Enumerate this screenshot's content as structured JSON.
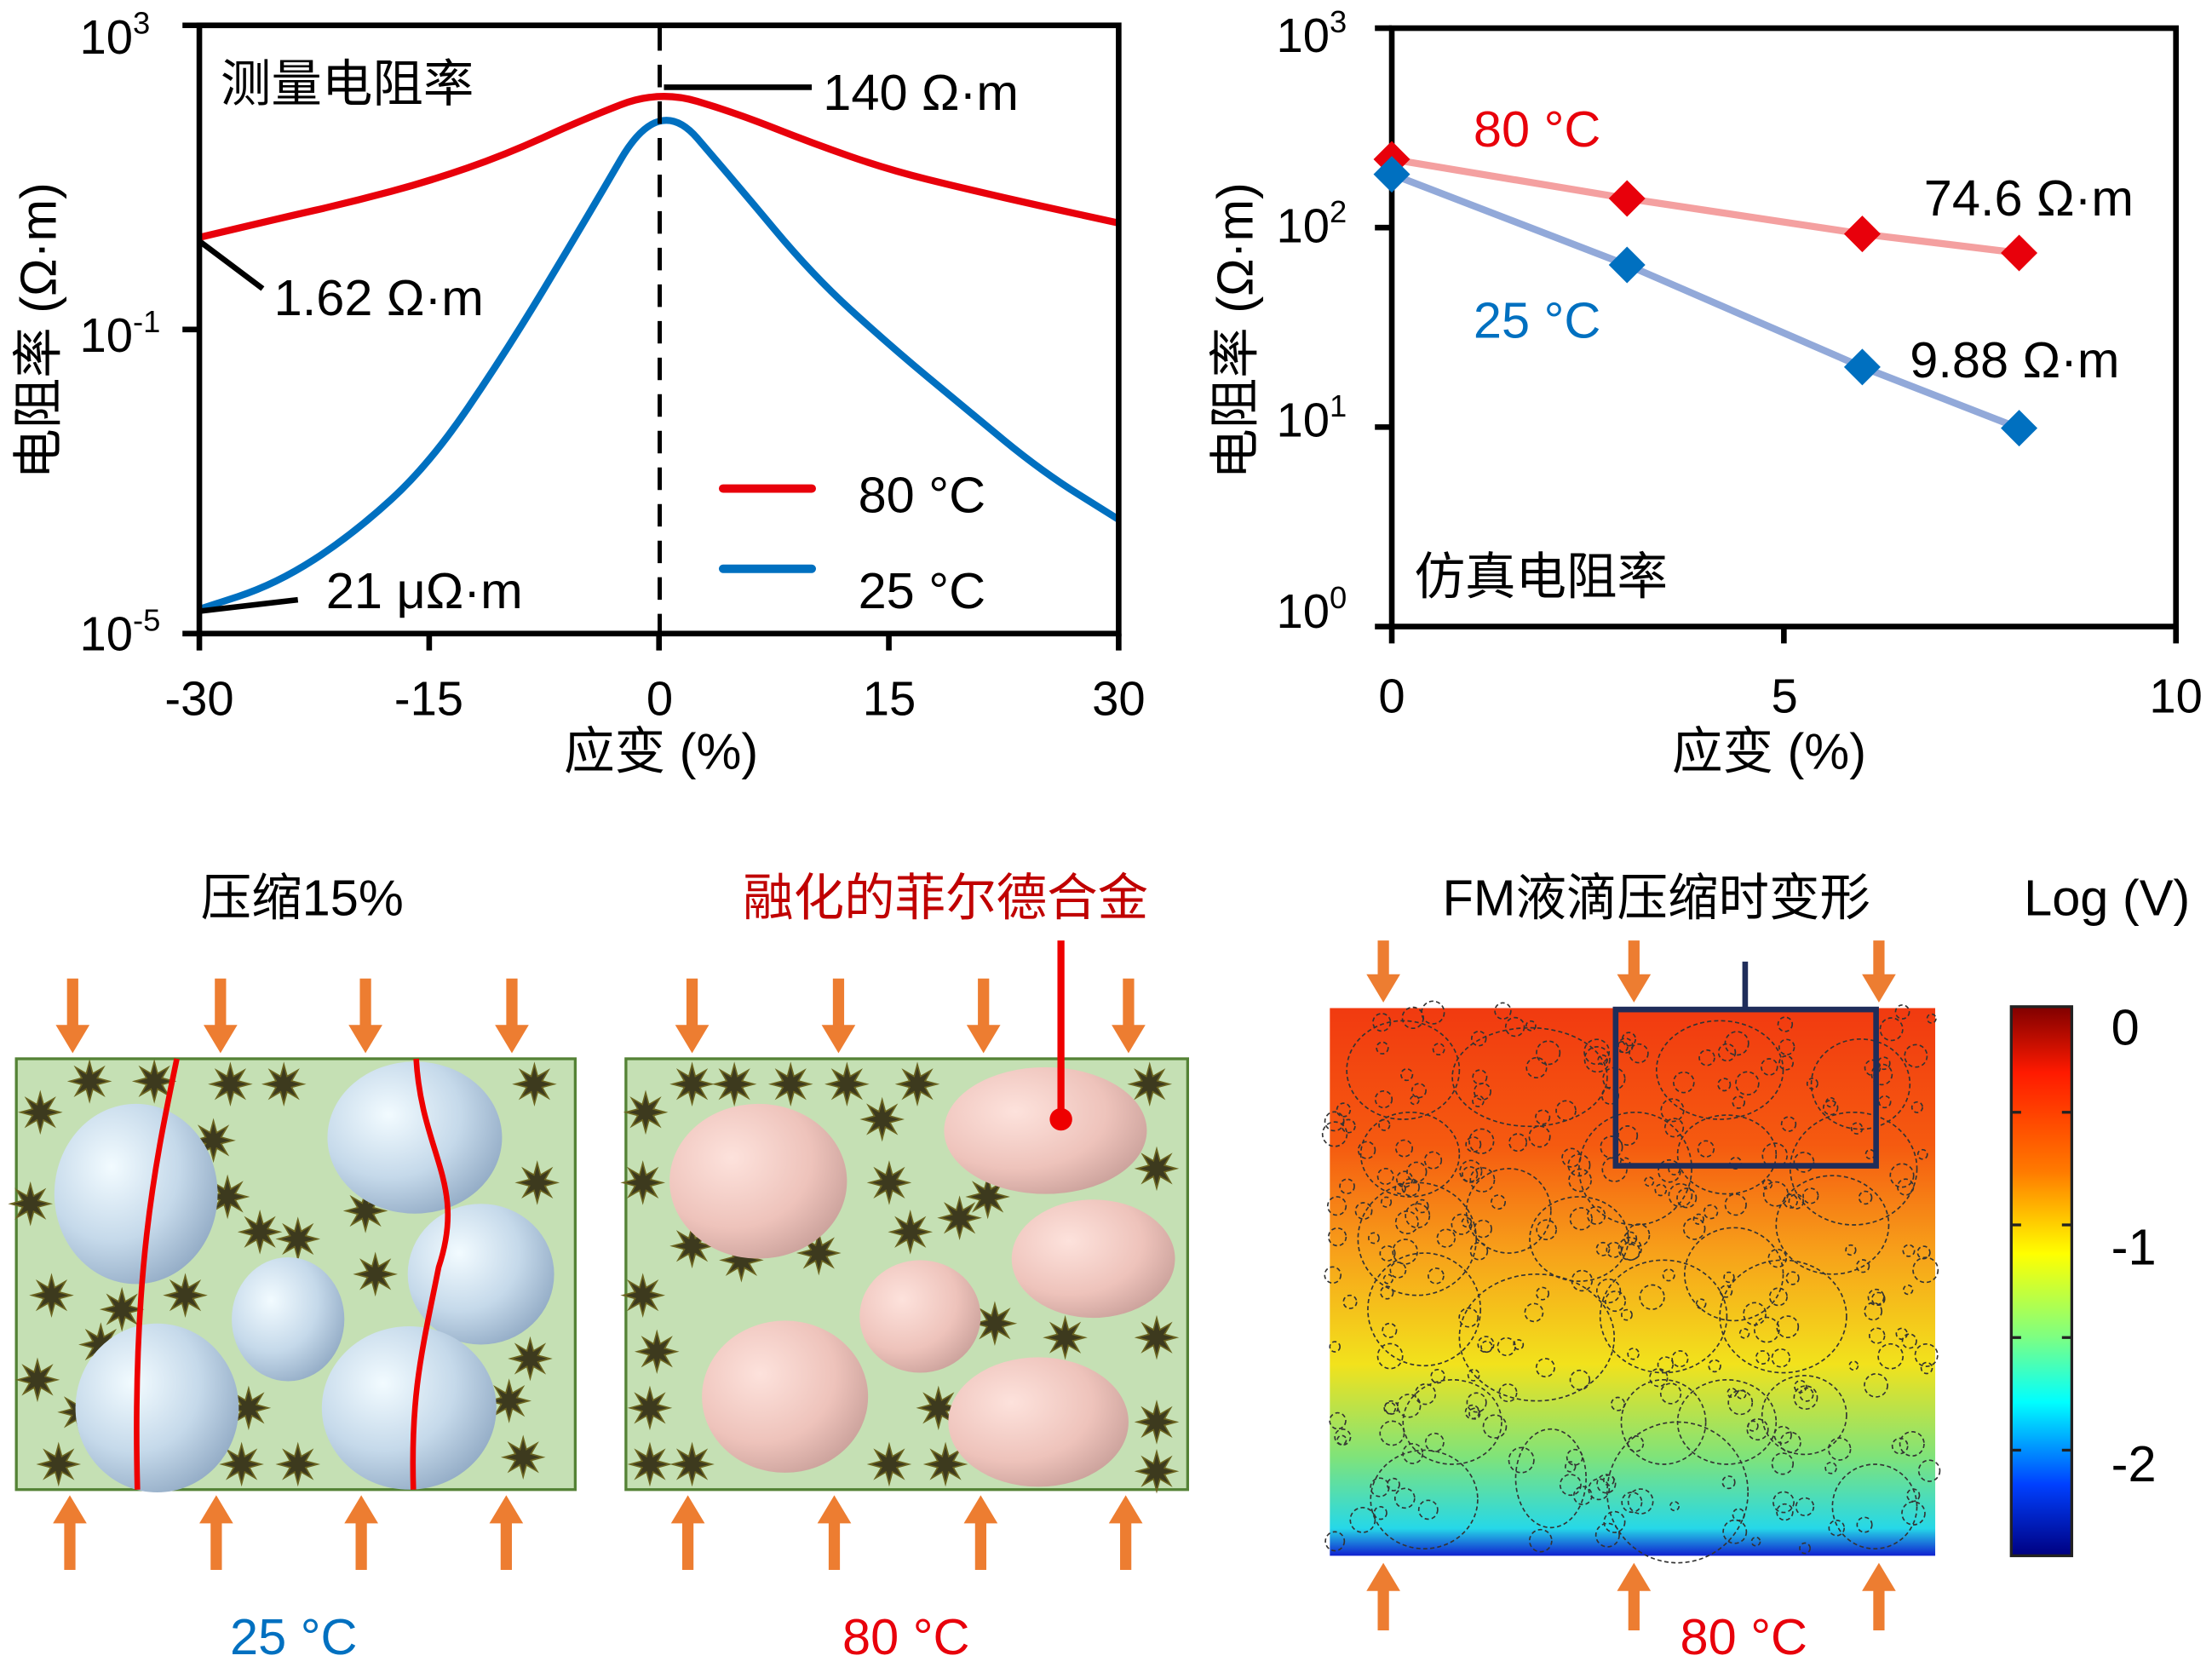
{
  "colors": {
    "red": "#e8000b",
    "blue": "#0070c0",
    "dark_red": "#c00000",
    "orange_arrow": "#ed7d31",
    "matrix_green": "#c5e0b4",
    "navy": "#1f2d5a"
  },
  "chart_data": [
    {
      "type": "line",
      "title": "测量电阻率",
      "xlabel": "应变 (%)",
      "ylabel": "电阻率 (Ω·m)",
      "xlim": [
        -30,
        30
      ],
      "yscale": "log",
      "ylim": [
        1e-05,
        1000
      ],
      "xticks": [
        "-30",
        "-15",
        "0",
        "15",
        "30"
      ],
      "yticks": [
        {
          "base": "10",
          "exp": "3"
        },
        {
          "base": "10",
          "exp": "-1"
        },
        {
          "base": "10",
          "exp": "-5"
        }
      ],
      "legend": {
        "placement": "bottom-right",
        "entries": [
          "80 °C",
          "25 °C"
        ]
      },
      "x": [
        -30,
        -25,
        -20,
        -15,
        -10,
        -5,
        0,
        5,
        10,
        15,
        20,
        25,
        30
      ],
      "series": [
        {
          "name": "80 °C",
          "color": "#e8000b",
          "log10_values": [
            0.21,
            0.45,
            0.68,
            0.95,
            1.3,
            1.76,
            2.15,
            1.85,
            1.45,
            1.1,
            0.85,
            0.62,
            0.4
          ]
        },
        {
          "name": "25 °C",
          "color": "#0070c0",
          "log10_values": [
            -4.68,
            -4.35,
            -3.7,
            -2.78,
            -1.3,
            0.37,
            2.1,
            0.93,
            -0.28,
            -1.2,
            -2.04,
            -2.87,
            -3.5
          ]
        }
      ],
      "annotations": {
        "peak": "140 Ω·m",
        "red_start": "1.62 Ω·m",
        "blue_start": "21 μΩ·m"
      }
    },
    {
      "type": "line",
      "title": "仿真电阻率",
      "xlabel": "应变 (%)",
      "ylabel": "电阻率 (Ω·m)",
      "xlim": [
        0,
        10
      ],
      "yscale": "log",
      "ylim": [
        1,
        1000
      ],
      "xticks": [
        "0",
        "5",
        "10"
      ],
      "yticks": [
        {
          "base": "10",
          "exp": "3"
        },
        {
          "base": "10",
          "exp": "2"
        },
        {
          "base": "10",
          "exp": "1"
        },
        {
          "base": "10",
          "exp": "0"
        }
      ],
      "x": [
        0,
        3,
        6,
        8
      ],
      "series": [
        {
          "name": "80 °C",
          "color": "#e8000b",
          "line_color": "#f4a0a0",
          "values": [
            220,
            140,
            93,
            74.6
          ]
        },
        {
          "name": "25 °C",
          "color": "#0070c0",
          "line_color": "#92a9d9",
          "values": [
            185,
            65,
            20,
            9.88
          ]
        }
      ],
      "annotations": {
        "red_end": "74.6 Ω·m",
        "blue_end": "9.88 Ω·m"
      }
    }
  ],
  "illustrations": {
    "compress_label": "压缩15%",
    "molten_label": "融化的菲尔德合金",
    "temp_left": "25 °C",
    "temp_mid": "80 °C",
    "sim_title": "FM液滴压缩时变形",
    "sim_temp": "80 °C",
    "colorbar": {
      "title": "Log (V)",
      "ticks": [
        "0",
        "-1",
        "-2"
      ],
      "range": [
        -2.6,
        0.3
      ]
    }
  }
}
